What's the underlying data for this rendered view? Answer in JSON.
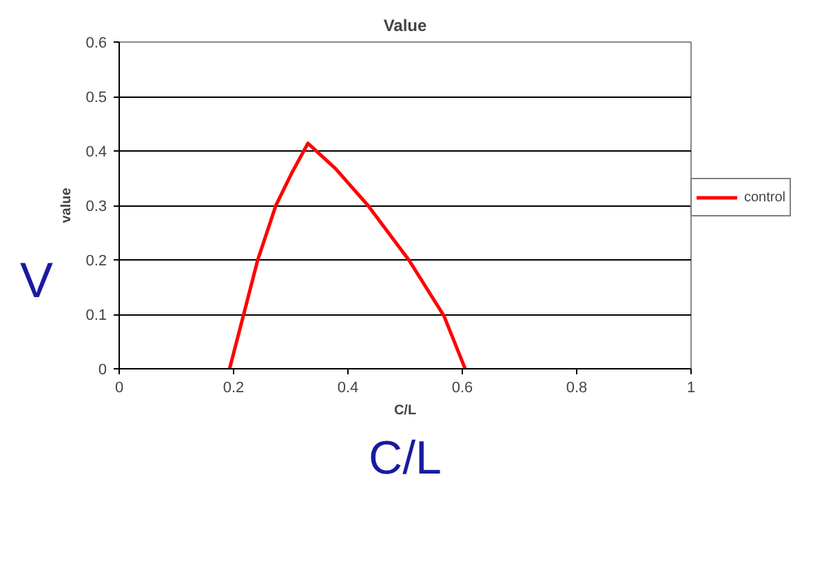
{
  "chart_data": {
    "type": "line",
    "title": "Value",
    "xlabel": "C/L",
    "ylabel": "value",
    "series": [
      {
        "name": "control",
        "color": "#ff0000",
        "x": [
          0.193,
          0.217,
          0.242,
          0.274,
          0.302,
          0.33,
          0.378,
          0.435,
          0.507,
          0.568,
          0.605
        ],
        "values": [
          0,
          0.097,
          0.199,
          0.3,
          0.36,
          0.414,
          0.368,
          0.3,
          0.199,
          0.097,
          0
        ]
      }
    ],
    "xlim": [
      0,
      1
    ],
    "ylim": [
      0,
      0.6
    ],
    "xticks": [
      0,
      0.2,
      0.4,
      0.6,
      0.8,
      1
    ],
    "yticks": [
      0,
      0.1,
      0.2,
      0.3,
      0.4,
      0.5,
      0.6
    ],
    "grid": "y",
    "legend": "right",
    "marker": "none",
    "line_style": "solid",
    "annotations": [
      "V",
      "C/L"
    ]
  }
}
